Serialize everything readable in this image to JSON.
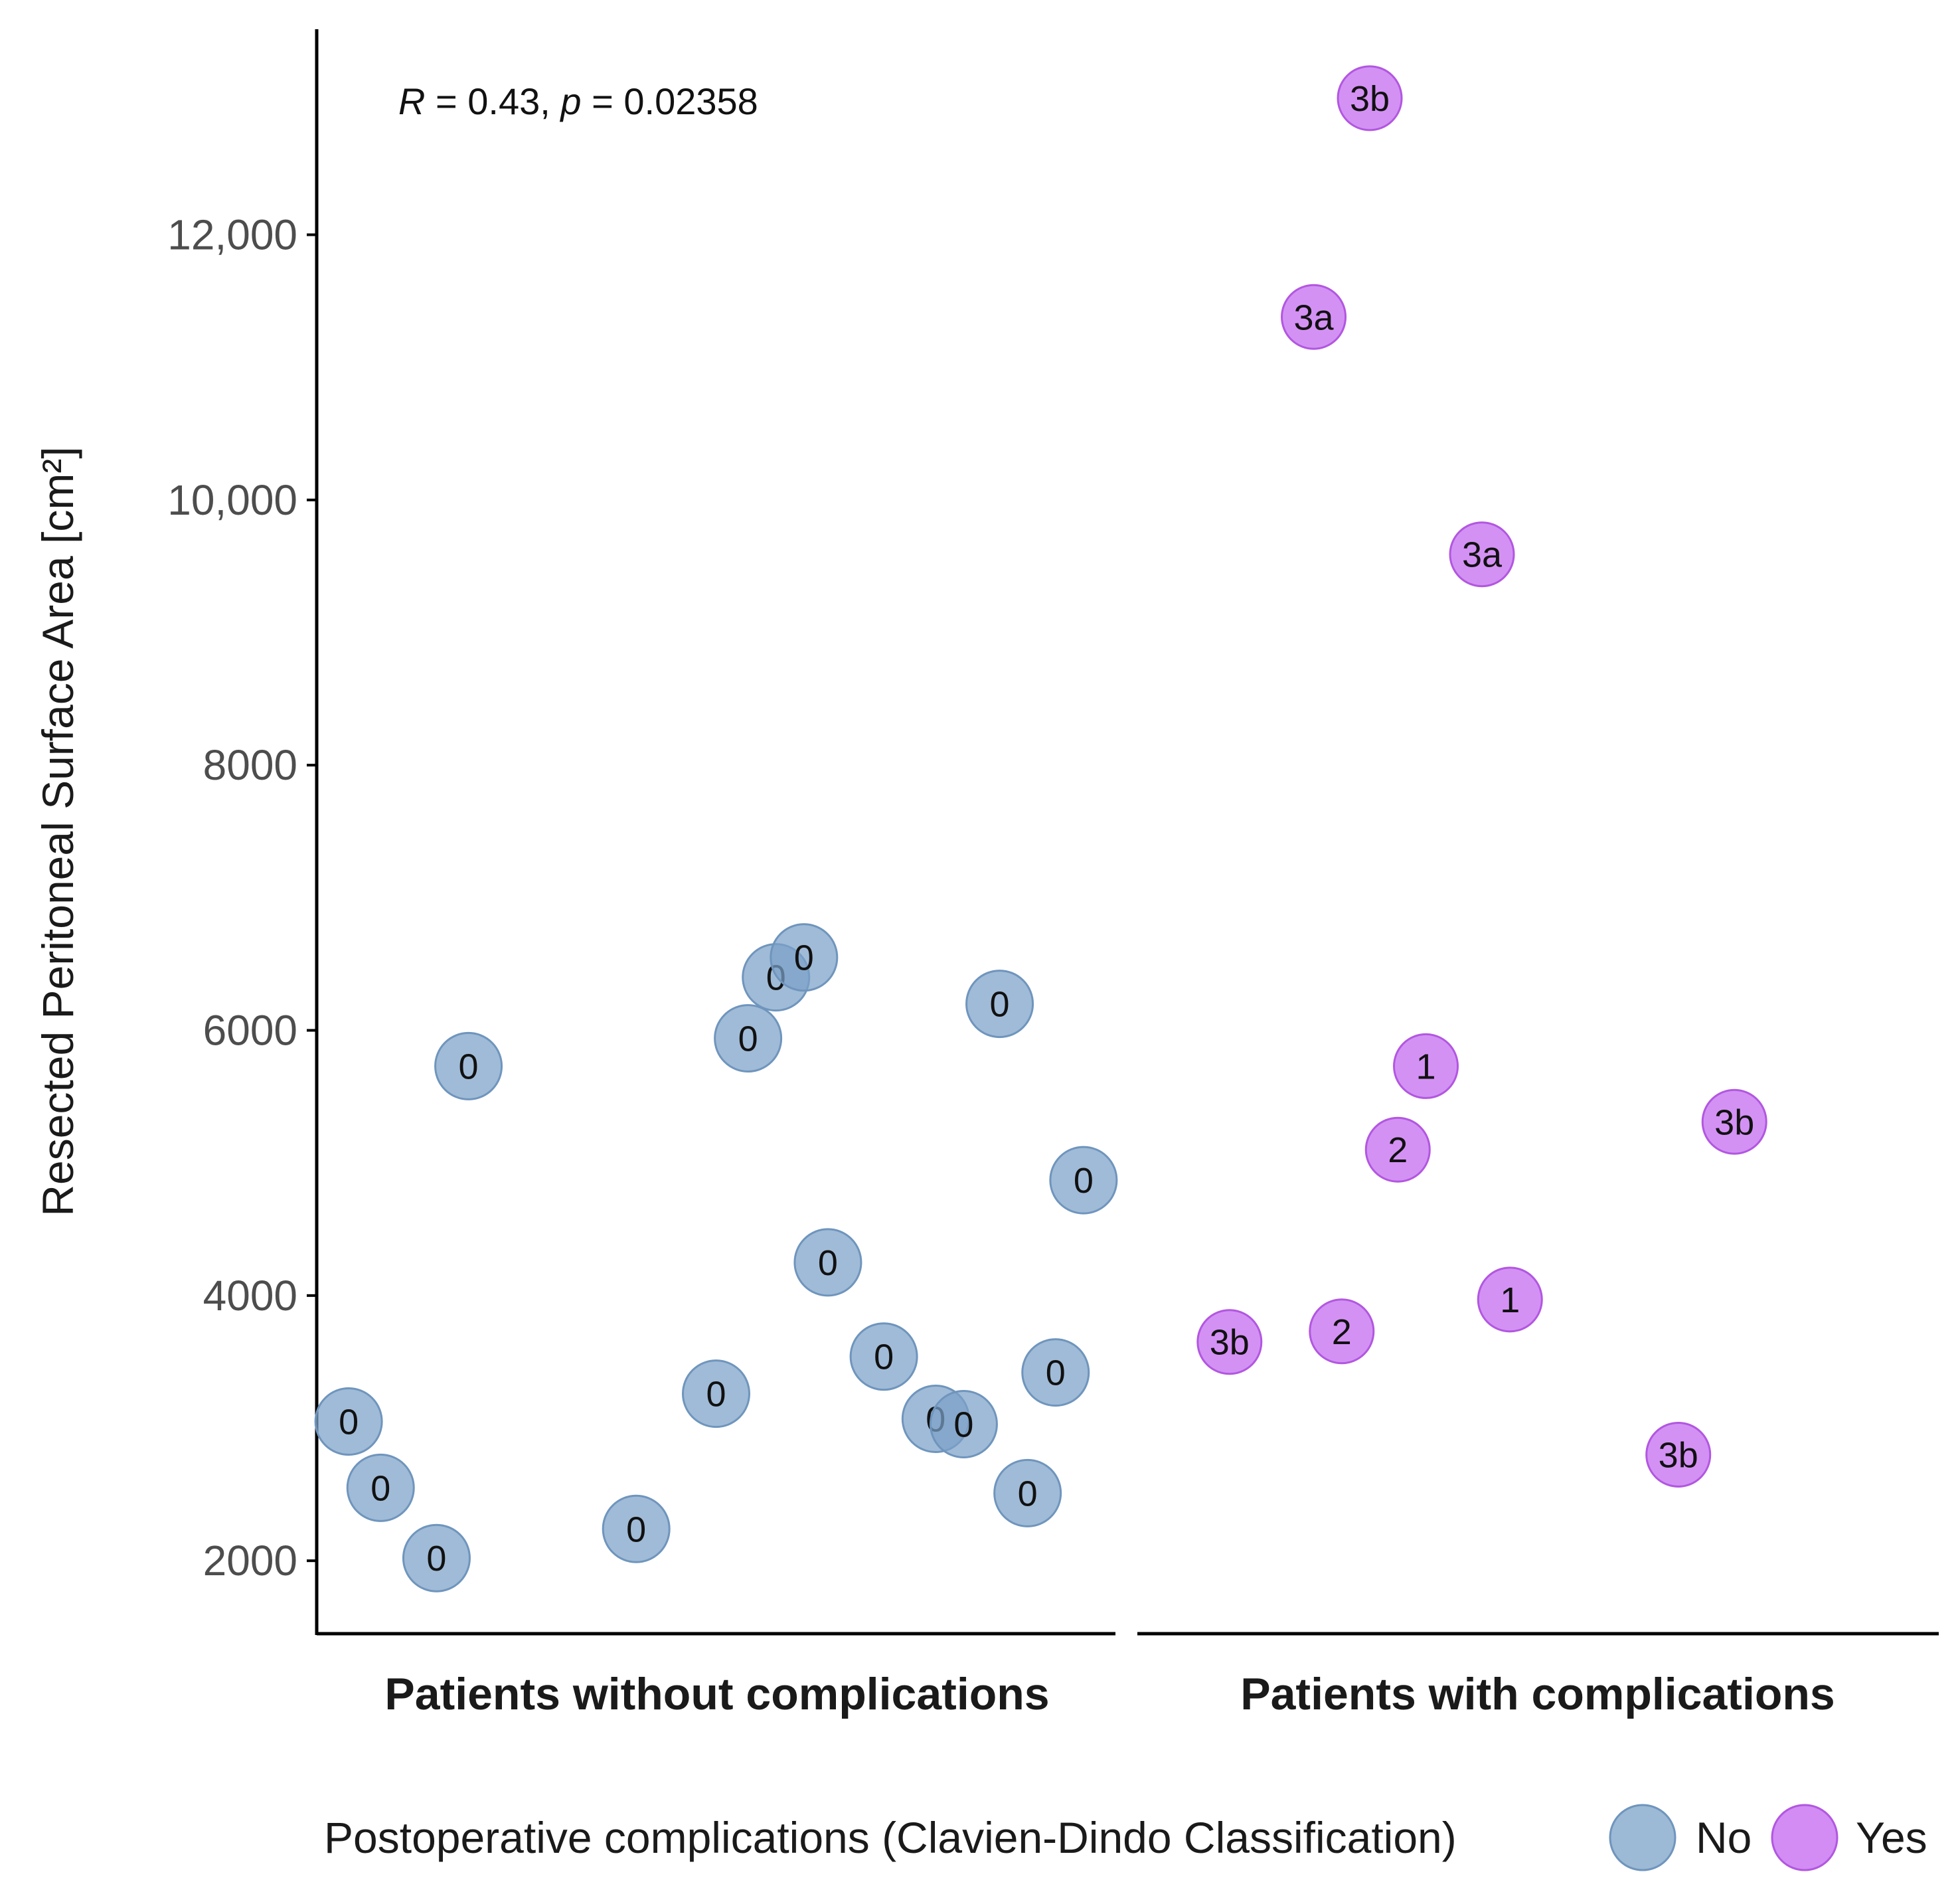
{
  "chart_data": {
    "type": "scatter",
    "ylabel": "Resected Peritoneal Surface Area [cm²]",
    "ylim": [
      1450,
      13550
    ],
    "yticks": [
      {
        "value": 2000,
        "label": "2000"
      },
      {
        "value": 4000,
        "label": "4000"
      },
      {
        "value": 6000,
        "label": "6000"
      },
      {
        "value": 8000,
        "label": "8000"
      },
      {
        "value": 10000,
        "label": "10,000"
      },
      {
        "value": 12000,
        "label": "12,000"
      }
    ],
    "grid": false,
    "annotation": {
      "r_symbol": "R",
      "r_value": " = 0.43, ",
      "p_symbol": "p",
      "p_value": " = 0.02358"
    },
    "groups": [
      {
        "name": "Patients without complications",
        "color": "#7ba1c7"
      },
      {
        "name": "Patients with complications",
        "color": "#c366f0"
      }
    ],
    "legend": {
      "title": "Postoperative complications (Clavien-Dindo Classification)",
      "placement": "bottom",
      "entries": [
        {
          "label": "No",
          "color": "#7ba1c7"
        },
        {
          "label": "Yes",
          "color": "#c366f0"
        }
      ]
    },
    "points": [
      {
        "group": 0,
        "jitter": 0.04,
        "y": 3050,
        "label": "0",
        "complication": "No"
      },
      {
        "group": 0,
        "jitter": 0.08,
        "y": 2550,
        "label": "0",
        "complication": "No"
      },
      {
        "group": 0,
        "jitter": 0.15,
        "y": 2020,
        "label": "0",
        "complication": "No"
      },
      {
        "group": 0,
        "jitter": 0.19,
        "y": 5730,
        "label": "0",
        "complication": "No"
      },
      {
        "group": 0,
        "jitter": 0.4,
        "y": 2240,
        "label": "0",
        "complication": "No"
      },
      {
        "group": 0,
        "jitter": 0.5,
        "y": 3260,
        "label": "0",
        "complication": "No"
      },
      {
        "group": 0,
        "jitter": 0.54,
        "y": 5940,
        "label": "0",
        "complication": "No"
      },
      {
        "group": 0,
        "jitter": 0.575,
        "y": 6400,
        "label": "0",
        "complication": "No"
      },
      {
        "group": 0,
        "jitter": 0.61,
        "y": 6550,
        "label": "0",
        "complication": "No"
      },
      {
        "group": 0,
        "jitter": 0.64,
        "y": 4250,
        "label": "0",
        "complication": "No"
      },
      {
        "group": 0,
        "jitter": 0.71,
        "y": 3540,
        "label": "0",
        "complication": "No"
      },
      {
        "group": 0,
        "jitter": 0.775,
        "y": 3070,
        "label": "0",
        "complication": "No"
      },
      {
        "group": 0,
        "jitter": 0.81,
        "y": 3030,
        "label": "0",
        "complication": "No"
      },
      {
        "group": 0,
        "jitter": 0.855,
        "y": 6200,
        "label": "0",
        "complication": "No"
      },
      {
        "group": 0,
        "jitter": 0.89,
        "y": 2510,
        "label": "0",
        "complication": "No"
      },
      {
        "group": 0,
        "jitter": 0.925,
        "y": 3420,
        "label": "0",
        "complication": "No"
      },
      {
        "group": 0,
        "jitter": 0.96,
        "y": 4870,
        "label": "0",
        "complication": "No"
      },
      {
        "group": 1,
        "jitter": 0.115,
        "y": 3650,
        "label": "3b",
        "complication": "Yes"
      },
      {
        "group": 1,
        "jitter": 0.22,
        "y": 11380,
        "label": "3a",
        "complication": "Yes"
      },
      {
        "group": 1,
        "jitter": 0.255,
        "y": 3730,
        "label": "2",
        "complication": "Yes"
      },
      {
        "group": 1,
        "jitter": 0.29,
        "y": 13030,
        "label": "3b",
        "complication": "Yes"
      },
      {
        "group": 1,
        "jitter": 0.325,
        "y": 5100,
        "label": "2",
        "complication": "Yes"
      },
      {
        "group": 1,
        "jitter": 0.36,
        "y": 5730,
        "label": "1",
        "complication": "Yes"
      },
      {
        "group": 1,
        "jitter": 0.43,
        "y": 9590,
        "label": "3a",
        "complication": "Yes"
      },
      {
        "group": 1,
        "jitter": 0.465,
        "y": 3970,
        "label": "1",
        "complication": "Yes"
      },
      {
        "group": 1,
        "jitter": 0.675,
        "y": 2800,
        "label": "3b",
        "complication": "Yes"
      },
      {
        "group": 1,
        "jitter": 0.745,
        "y": 5310,
        "label": "3b",
        "complication": "Yes"
      }
    ]
  }
}
